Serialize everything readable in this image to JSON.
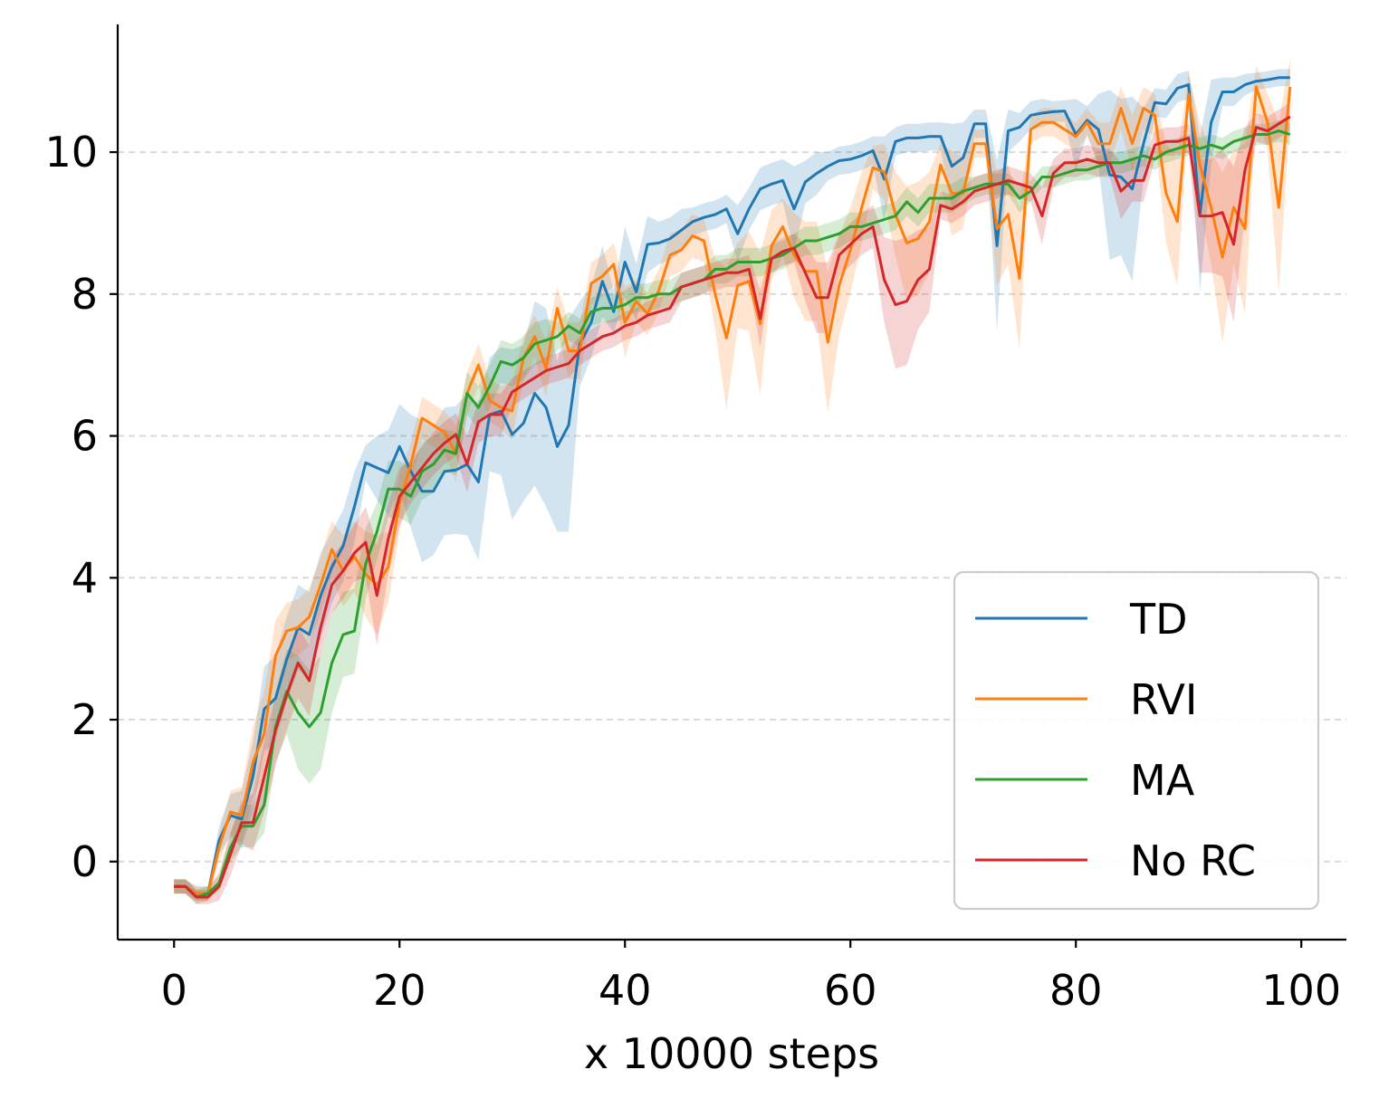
{
  "chart_data": {
    "type": "line",
    "title": "",
    "xlabel": "x 10000 steps",
    "ylabel": "",
    "xlim": [
      -5,
      104
    ],
    "ylim": [
      -1.1,
      11.8
    ],
    "xticks": [
      0,
      20,
      40,
      60,
      80,
      100
    ],
    "yticks": [
      0,
      2,
      4,
      6,
      8,
      10
    ],
    "x_tick_labels": [
      "0",
      "20",
      "40",
      "60",
      "80",
      "100"
    ],
    "y_tick_labels": [
      "0",
      "2",
      "4",
      "6",
      "8",
      "10"
    ],
    "grid": "horizontal dashed",
    "legend_position": "lower-right",
    "x": [
      0,
      1,
      2,
      3,
      4,
      5,
      6,
      7,
      8,
      9,
      10,
      11,
      12,
      13,
      14,
      15,
      16,
      17,
      18,
      19,
      20,
      21,
      22,
      23,
      24,
      25,
      26,
      27,
      28,
      29,
      30,
      31,
      32,
      33,
      34,
      35,
      36,
      37,
      38,
      39,
      40,
      41,
      42,
      43,
      44,
      45,
      46,
      47,
      48,
      49,
      50,
      51,
      52,
      53,
      54,
      55,
      56,
      57,
      58,
      59,
      60,
      61,
      62,
      63,
      64,
      65,
      66,
      67,
      68,
      69,
      70,
      71,
      72,
      73,
      74,
      75,
      76,
      77,
      78,
      79,
      80,
      81,
      82,
      83,
      84,
      85,
      86,
      87,
      88,
      89,
      90,
      91,
      92,
      93,
      94,
      95,
      96,
      97,
      98,
      99
    ],
    "series": [
      {
        "name": "TD",
        "color": "#1f77b4",
        "values": [
          -0.35,
          -0.35,
          -0.45,
          -0.45,
          0.3,
          0.65,
          0.6,
          1.2,
          2.15,
          2.3,
          2.85,
          3.3,
          3.2,
          3.75,
          4.15,
          4.45,
          5,
          5.62,
          5.55,
          5.48,
          5.85,
          5.5,
          5.22,
          5.22,
          5.5,
          5.52,
          5.6,
          5.35,
          6.3,
          6.35,
          6.02,
          6.18,
          6.6,
          6.4,
          5.85,
          6.15,
          7.3,
          7.6,
          8.18,
          7.75,
          8.45,
          8.03,
          8.7,
          8.72,
          8.78,
          8.9,
          9.02,
          9.08,
          9.12,
          9.2,
          8.85,
          9.2,
          9.48,
          9.55,
          9.6,
          9.2,
          9.58,
          9.7,
          9.8,
          9.88,
          9.9,
          9.95,
          10.02,
          9.62,
          10.15,
          10.2,
          10.2,
          10.22,
          10.22,
          9.8,
          9.92,
          10.4,
          10.4,
          8.68,
          10.3,
          10.35,
          10.52,
          10.55,
          10.57,
          10.58,
          10.25,
          10.45,
          10.32,
          9.68,
          9.65,
          9.48,
          10.12,
          10.7,
          10.68,
          10.9,
          10.95,
          9.12,
          10.42,
          10.85,
          10.85,
          10.95,
          11,
          11.02,
          11.05,
          11.05
        ],
        "band": [
          0.1,
          0.1,
          0.1,
          0.1,
          0.2,
          0.3,
          0.4,
          0.5,
          0.6,
          0.6,
          0.6,
          0.6,
          0.6,
          0.6,
          0.5,
          0.5,
          0.5,
          0.25,
          0.45,
          0.6,
          0.6,
          0.8,
          1,
          0.9,
          0.9,
          0.9,
          1,
          1.1,
          0.8,
          0.9,
          1.2,
          1.1,
          1.3,
          1.4,
          1.2,
          1.5,
          0.6,
          0.5,
          0.5,
          0.3,
          0.5,
          0.4,
          0.4,
          0.3,
          0.3,
          0.3,
          0.2,
          0.2,
          0.2,
          0.2,
          0.4,
          0.3,
          0.3,
          0.3,
          0.3,
          0.6,
          0.3,
          0.3,
          0.2,
          0.2,
          0.2,
          0.2,
          0.2,
          0.6,
          0.2,
          0.2,
          0.2,
          0.2,
          0.2,
          0.6,
          0.5,
          0.2,
          0.2,
          1.2,
          0.3,
          0.2,
          0.2,
          0.2,
          0.15,
          0.15,
          0.5,
          0.2,
          0.5,
          1.2,
          1.1,
          1.3,
          0.5,
          0.2,
          0.2,
          0.2,
          0.2,
          1.1,
          0.6,
          0.2,
          0.2,
          0.15,
          0.12,
          0.12,
          0.12,
          0.12
        ]
      },
      {
        "name": "RVI",
        "color": "#ff7f0e",
        "values": [
          -0.35,
          -0.35,
          -0.45,
          -0.45,
          0.2,
          0.7,
          0.65,
          1.4,
          1.8,
          2.9,
          3.25,
          3.3,
          3.45,
          3.9,
          4.4,
          4.1,
          4.3,
          4.05,
          3.9,
          4.15,
          5.05,
          5.6,
          6.25,
          6.15,
          6.05,
          5.75,
          6.6,
          7.0,
          6.5,
          6.4,
          6.35,
          7.1,
          7.4,
          6.95,
          7.8,
          7.2,
          7.2,
          8.15,
          8.25,
          8.42,
          7.6,
          7.9,
          7.72,
          8.05,
          8.55,
          8.62,
          8.82,
          8.75,
          8.0,
          7.38,
          8.12,
          8.18,
          7.58,
          8.68,
          8.95,
          8.55,
          8.32,
          8.32,
          7.32,
          8.12,
          8.62,
          9.22,
          9.78,
          9.72,
          9.12,
          8.72,
          8.78,
          9.02,
          9.82,
          9.42,
          9.42,
          10.12,
          10.12,
          8.92,
          9.12,
          8.22,
          10.32,
          10.42,
          10.42,
          10.32,
          10.22,
          10.42,
          10.12,
          10.12,
          10.62,
          10.12,
          10.62,
          10.52,
          9.42,
          9.02,
          10.82,
          9.82,
          9.22,
          8.52,
          9.22,
          8.92,
          10.92,
          10.42,
          9.22,
          10.92
        ],
        "band": [
          0.1,
          0.1,
          0.1,
          0.1,
          0.2,
          0.3,
          0.4,
          0.5,
          0.6,
          0.5,
          0.4,
          0.4,
          0.4,
          0.4,
          0.4,
          0.5,
          0.5,
          0.6,
          0.7,
          0.5,
          0.4,
          0.3,
          0.3,
          0.3,
          0.3,
          0.4,
          0.3,
          0.3,
          0.3,
          0.3,
          0.4,
          0.3,
          0.3,
          0.4,
          0.3,
          0.4,
          0.4,
          0.3,
          0.3,
          0.3,
          0.5,
          0.3,
          0.3,
          0.3,
          0.3,
          0.3,
          0.3,
          0.3,
          0.5,
          1.0,
          0.6,
          0.7,
          1.0,
          0.5,
          0.4,
          0.6,
          0.7,
          0.7,
          1.0,
          0.7,
          0.6,
          0.5,
          0.3,
          0.4,
          0.6,
          0.8,
          0.8,
          0.7,
          0.3,
          0.6,
          0.5,
          0.2,
          0.2,
          0.8,
          0.7,
          1.0,
          0.2,
          0.2,
          0.2,
          0.2,
          0.2,
          0.2,
          0.3,
          0.3,
          0.3,
          0.4,
          0.3,
          0.3,
          0.7,
          0.9,
          0.3,
          0.6,
          0.8,
          1.2,
          0.8,
          1.2,
          0.3,
          0.4,
          1.2,
          0.4
        ]
      },
      {
        "name": "MA",
        "color": "#2ca02c",
        "values": [
          -0.35,
          -0.35,
          -0.5,
          -0.45,
          -0.3,
          0.2,
          0.5,
          0.5,
          0.8,
          1.9,
          2.4,
          2.1,
          1.9,
          2.1,
          2.8,
          3.2,
          3.25,
          4.2,
          4.65,
          5.25,
          5.25,
          5.15,
          5.5,
          5.6,
          5.8,
          5.75,
          6.6,
          6.4,
          6.7,
          7.05,
          7.0,
          7.1,
          7.3,
          7.35,
          7.4,
          7.55,
          7.45,
          7.75,
          7.8,
          7.8,
          7.85,
          7.95,
          7.95,
          8.0,
          8.0,
          8.1,
          8.15,
          8.2,
          8.35,
          8.35,
          8.45,
          8.45,
          8.45,
          8.5,
          8.55,
          8.65,
          8.75,
          8.75,
          8.8,
          8.85,
          8.95,
          8.95,
          9.0,
          9.05,
          9.1,
          9.3,
          9.15,
          9.35,
          9.35,
          9.35,
          9.45,
          9.5,
          9.55,
          9.55,
          9.55,
          9.35,
          9.45,
          9.65,
          9.65,
          9.7,
          9.75,
          9.75,
          9.8,
          9.85,
          9.85,
          9.9,
          9.95,
          9.9,
          10.0,
          10.05,
          10.1,
          10.05,
          10.1,
          10.05,
          10.15,
          10.2,
          10.25,
          10.25,
          10.3,
          10.25
        ],
        "band": [
          0.1,
          0.1,
          0.1,
          0.1,
          0.1,
          0.2,
          0.3,
          0.3,
          0.4,
          0.5,
          0.6,
          0.8,
          0.8,
          0.8,
          0.7,
          0.6,
          0.6,
          0.5,
          0.4,
          0.4,
          0.4,
          0.4,
          0.4,
          0.4,
          0.3,
          0.3,
          0.3,
          0.3,
          0.3,
          0.3,
          0.3,
          0.3,
          0.3,
          0.3,
          0.2,
          0.2,
          0.2,
          0.2,
          0.2,
          0.2,
          0.2,
          0.2,
          0.2,
          0.2,
          0.2,
          0.2,
          0.2,
          0.2,
          0.2,
          0.2,
          0.2,
          0.2,
          0.2,
          0.2,
          0.2,
          0.2,
          0.2,
          0.2,
          0.2,
          0.2,
          0.2,
          0.2,
          0.2,
          0.2,
          0.2,
          0.2,
          0.2,
          0.2,
          0.2,
          0.2,
          0.2,
          0.15,
          0.15,
          0.15,
          0.15,
          0.2,
          0.15,
          0.15,
          0.15,
          0.15,
          0.15,
          0.15,
          0.15,
          0.15,
          0.15,
          0.15,
          0.15,
          0.15,
          0.15,
          0.15,
          0.15,
          0.15,
          0.15,
          0.15,
          0.15,
          0.15,
          0.15,
          0.15,
          0.15,
          0.15
        ]
      },
      {
        "name": "No RC",
        "color": "#d62728",
        "values": [
          -0.35,
          -0.35,
          -0.5,
          -0.5,
          -0.35,
          0.1,
          0.55,
          0.55,
          1.2,
          1.85,
          2.35,
          2.8,
          2.55,
          3.3,
          3.9,
          4.1,
          4.35,
          4.5,
          3.75,
          4.55,
          5.15,
          5.35,
          5.55,
          5.75,
          5.9,
          6.02,
          5.6,
          6.2,
          6.3,
          6.3,
          6.62,
          6.72,
          6.82,
          6.92,
          6.97,
          7.02,
          7.2,
          7.3,
          7.4,
          7.45,
          7.55,
          7.6,
          7.7,
          7.75,
          7.8,
          8.1,
          8.15,
          8.2,
          8.25,
          8.3,
          8.3,
          8.35,
          7.65,
          8.5,
          8.6,
          8.65,
          8.3,
          7.95,
          7.95,
          8.55,
          8.7,
          8.85,
          8.95,
          8.2,
          7.85,
          7.9,
          8.2,
          8.35,
          9.25,
          9.2,
          9.3,
          9.45,
          9.5,
          9.55,
          9.6,
          9.55,
          9.5,
          9.1,
          9.7,
          9.85,
          9.85,
          9.9,
          9.85,
          9.85,
          9.45,
          9.6,
          9.6,
          10.1,
          10.15,
          10.15,
          10.2,
          9.1,
          9.1,
          9.15,
          8.7,
          9.75,
          10.35,
          10.3,
          10.4,
          10.5
        ],
        "band": [
          0.1,
          0.1,
          0.1,
          0.1,
          0.2,
          0.3,
          0.3,
          0.4,
          0.5,
          0.5,
          0.5,
          0.5,
          0.5,
          0.4,
          0.4,
          0.4,
          0.4,
          0.5,
          0.7,
          0.5,
          0.4,
          0.3,
          0.3,
          0.3,
          0.3,
          0.3,
          0.4,
          0.3,
          0.3,
          0.3,
          0.2,
          0.2,
          0.2,
          0.2,
          0.2,
          0.2,
          0.2,
          0.2,
          0.2,
          0.2,
          0.2,
          0.2,
          0.2,
          0.2,
          0.2,
          0.2,
          0.2,
          0.2,
          0.2,
          0.2,
          0.2,
          0.2,
          0.4,
          0.2,
          0.2,
          0.2,
          0.4,
          0.5,
          0.5,
          0.3,
          0.3,
          0.3,
          0.3,
          0.6,
          0.9,
          0.9,
          0.7,
          0.6,
          0.2,
          0.2,
          0.2,
          0.2,
          0.2,
          0.2,
          0.2,
          0.2,
          0.2,
          0.4,
          0.2,
          0.2,
          0.2,
          0.2,
          0.2,
          0.2,
          0.4,
          0.3,
          0.3,
          0.2,
          0.2,
          0.2,
          0.2,
          0.8,
          0.8,
          0.9,
          1.1,
          0.6,
          0.2,
          0.2,
          0.2,
          0.2
        ]
      }
    ]
  }
}
